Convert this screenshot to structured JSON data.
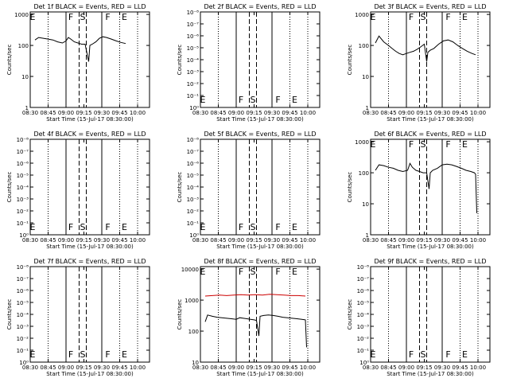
{
  "figure": {
    "xlabel": "Start Time (15-Jul-17 08:30:00)",
    "ylabel": "Counts/sec"
  },
  "chart_data": [
    {
      "type": "line",
      "title": "Det 1f BLACK = Events, RED = LLD",
      "xlabel": "Start Time (15-Jul-17 08:30:00)",
      "ylabel": "Counts/sec",
      "x_tick_labels": [
        "08:30",
        "08:45",
        "09:00",
        "09:15",
        "09:30",
        "09:45",
        "10:00"
      ],
      "y_tick_labels": [
        "1",
        "10",
        "100",
        "1000"
      ],
      "ylim": [
        1,
        1000
      ],
      "yscale": "log",
      "markers": [
        "E",
        "F",
        "S",
        "F",
        "E"
      ],
      "series": [
        {
          "color": "#000000",
          "x": [
            "08:34",
            "08:37",
            "08:41",
            "08:45",
            "08:49",
            "08:53",
            "08:57",
            "09:00",
            "09:02",
            "09:04",
            "09:07",
            "09:10",
            "09:13",
            "09:16",
            "09:19",
            "09:20",
            "09:22",
            "09:25",
            "09:28",
            "09:31",
            "09:34",
            "09:38",
            "09:42",
            "09:46",
            "09:50"
          ],
          "values": [
            150,
            180,
            170,
            160,
            150,
            130,
            120,
            140,
            180,
            160,
            130,
            120,
            110,
            110,
            30,
            100,
            110,
            130,
            170,
            190,
            180,
            160,
            140,
            125,
            115
          ]
        }
      ]
    },
    {
      "type": "line",
      "title": "Det 2f BLACK = Events, RED = LLD",
      "xlabel": "Start Time (15-Jul-17 08:30:00)",
      "ylabel": "Counts/sec",
      "x_tick_labels": [
        "08:30",
        "08:45",
        "09:00",
        "09:15",
        "09:30",
        "09:45",
        "10:00"
      ],
      "y_tick_labels": [
        "10⁰",
        "10⁻¹",
        "10⁻²",
        "10⁻³",
        "10⁻⁴",
        "10⁻⁵",
        "10⁻⁶",
        "10⁻⁷",
        "10⁻⁸"
      ],
      "markers": [
        "E",
        "F",
        "S",
        "F",
        "E"
      ],
      "series": []
    },
    {
      "type": "line",
      "title": "Det 3f BLACK = Events, RED = LLD",
      "xlabel": "Start Time (15-Jul-17 08:30:00)",
      "ylabel": "Counts/sec",
      "x_tick_labels": [
        "08:30",
        "08:45",
        "09:00",
        "09:15",
        "09:30",
        "09:45",
        "10:00"
      ],
      "y_tick_labels": [
        "1",
        "10",
        "100",
        "1000"
      ],
      "ylim": [
        1,
        1000
      ],
      "yscale": "log",
      "markers": [
        "E",
        "F",
        "S",
        "F",
        "E"
      ],
      "series": [
        {
          "color": "#000000",
          "x": [
            "08:34",
            "08:37",
            "08:41",
            "08:45",
            "08:48",
            "08:51",
            "08:54",
            "08:57",
            "09:00",
            "09:03",
            "09:06",
            "09:09",
            "09:12",
            "09:15",
            "09:17",
            "09:18",
            "09:20",
            "09:23",
            "09:27",
            "09:31",
            "09:35",
            "09:39",
            "09:43",
            "09:47",
            "09:51",
            "09:55",
            "09:58"
          ],
          "values": [
            120,
            200,
            130,
            100,
            80,
            65,
            55,
            50,
            55,
            60,
            65,
            75,
            90,
            110,
            30,
            60,
            70,
            80,
            110,
            140,
            150,
            130,
            100,
            80,
            65,
            55,
            50
          ]
        }
      ]
    },
    {
      "type": "line",
      "title": "Det 4f BLACK = Events, RED = LLD",
      "xlabel": "Start Time (15-Jul-17 08:30:00)",
      "ylabel": "Counts/sec",
      "x_tick_labels": [
        "08:30",
        "08:45",
        "09:00",
        "09:15",
        "09:30",
        "09:45",
        "10:00"
      ],
      "y_tick_labels": [
        "10⁰",
        "10⁻¹",
        "10⁻²",
        "10⁻³",
        "10⁻⁴",
        "10⁻⁵",
        "10⁻⁶",
        "10⁻⁷",
        "10⁻⁸"
      ],
      "markers": [
        "E",
        "F",
        "S",
        "F",
        "E"
      ],
      "series": []
    },
    {
      "type": "line",
      "title": "Det 5f BLACK = Events, RED = LLD",
      "xlabel": "Start Time (15-Jul-17 08:30:00)",
      "ylabel": "Counts/sec",
      "x_tick_labels": [
        "08:30",
        "08:45",
        "09:00",
        "09:15",
        "09:30",
        "09:45",
        "10:00"
      ],
      "y_tick_labels": [
        "10⁰",
        "10⁻¹",
        "10⁻²",
        "10⁻³",
        "10⁻⁴",
        "10⁻⁵",
        "10⁻⁶",
        "10⁻⁷",
        "10⁻⁸"
      ],
      "markers": [
        "E",
        "F",
        "S",
        "F",
        "E"
      ],
      "series": []
    },
    {
      "type": "line",
      "title": "Det 6f BLACK = Events, RED = LLD",
      "xlabel": "Start Time (15-Jul-17 08:30:00)",
      "ylabel": "Counts/sec",
      "x_tick_labels": [
        "08:30",
        "08:45",
        "09:00",
        "09:15",
        "09:30",
        "09:45",
        "10:00"
      ],
      "y_tick_labels": [
        "1",
        "10",
        "100",
        "1000"
      ],
      "ylim": [
        1,
        1000
      ],
      "yscale": "log",
      "markers": [
        "E",
        "F",
        "S",
        "F",
        "E"
      ],
      "series": [
        {
          "color": "#000000",
          "x": [
            "08:34",
            "08:37",
            "08:41",
            "08:45",
            "08:49",
            "08:53",
            "08:57",
            "09:01",
            "09:03",
            "09:05",
            "09:08",
            "09:11",
            "09:14",
            "09:17",
            "09:19",
            "09:20",
            "09:22",
            "09:26",
            "09:30",
            "09:34",
            "09:38",
            "09:42",
            "09:46",
            "09:50",
            "09:54",
            "09:57",
            "09:58",
            "09:59"
          ],
          "values": [
            120,
            180,
            170,
            150,
            140,
            120,
            110,
            120,
            200,
            150,
            120,
            110,
            100,
            100,
            30,
            100,
            120,
            140,
            180,
            190,
            180,
            160,
            140,
            120,
            110,
            100,
            90,
            5
          ]
        }
      ]
    },
    {
      "type": "line",
      "title": "Det 7f BLACK = Events, RED = LLD",
      "xlabel": "Start Time (15-Jul-17 08:30:00)",
      "ylabel": "Counts/sec",
      "x_tick_labels": [
        "08:30",
        "08:45",
        "09:00",
        "09:15",
        "09:30",
        "09:45",
        "10:00"
      ],
      "y_tick_labels": [
        "10⁰",
        "10⁻¹",
        "10⁻²",
        "10⁻³",
        "10⁻⁴",
        "10⁻⁵",
        "10⁻⁶",
        "10⁻⁷",
        "10⁻⁸"
      ],
      "markers": [
        "E",
        "F",
        "S",
        "F",
        "E"
      ],
      "series": []
    },
    {
      "type": "line",
      "title": "Det 8f BLACK = Events, RED = LLD",
      "xlabel": "Start Time (15-Jul-17 08:30:00)",
      "ylabel": "Counts/sec",
      "x_tick_labels": [
        "08:30",
        "08:45",
        "09:00",
        "09:15",
        "09:30",
        "09:45",
        "10:00"
      ],
      "y_tick_labels": [
        "10",
        "100",
        "1000",
        "10000"
      ],
      "ylim": [
        10,
        10000
      ],
      "yscale": "log",
      "markers": [
        "E",
        "F",
        "S",
        "F",
        "E"
      ],
      "series": [
        {
          "color": "#cc0000",
          "x": [
            "08:34",
            "08:40",
            "08:46",
            "08:52",
            "08:58",
            "09:04",
            "09:10",
            "09:16",
            "09:22",
            "09:28",
            "09:34",
            "09:40",
            "09:46",
            "09:52",
            "09:58"
          ],
          "values": [
            1350,
            1400,
            1450,
            1400,
            1450,
            1500,
            1450,
            1500,
            1450,
            1550,
            1500,
            1450,
            1400,
            1400,
            1350
          ]
        },
        {
          "color": "#000000",
          "x": [
            "08:34",
            "08:36",
            "08:40",
            "08:44",
            "08:48",
            "08:52",
            "08:56",
            "09:00",
            "09:03",
            "09:06",
            "09:09",
            "09:12",
            "09:15",
            "09:17",
            "09:19",
            "09:20",
            "09:23",
            "09:27",
            "09:31",
            "09:35",
            "09:39",
            "09:43",
            "09:47",
            "09:51",
            "09:55",
            "09:58",
            "09:59"
          ],
          "values": [
            200,
            330,
            300,
            280,
            270,
            260,
            250,
            240,
            270,
            260,
            250,
            240,
            230,
            220,
            70,
            300,
            320,
            330,
            320,
            300,
            280,
            270,
            260,
            250,
            240,
            230,
            30
          ]
        }
      ]
    },
    {
      "type": "line",
      "title": "Det 9f BLACK = Events, RED = LLD",
      "xlabel": "Start Time (15-Jul-17 08:30:00)",
      "ylabel": "Counts/sec",
      "x_tick_labels": [
        "08:30",
        "08:45",
        "09:00",
        "09:15",
        "09:30",
        "09:45",
        "10:00"
      ],
      "y_tick_labels": [
        "10⁰",
        "10⁻¹",
        "10⁻²",
        "10⁻³",
        "10⁻⁴",
        "10⁻⁵",
        "10⁻⁶",
        "10⁻⁷",
        "10⁻⁸"
      ],
      "markers": [
        "E",
        "F",
        "S",
        "F",
        "E"
      ],
      "series": []
    }
  ]
}
